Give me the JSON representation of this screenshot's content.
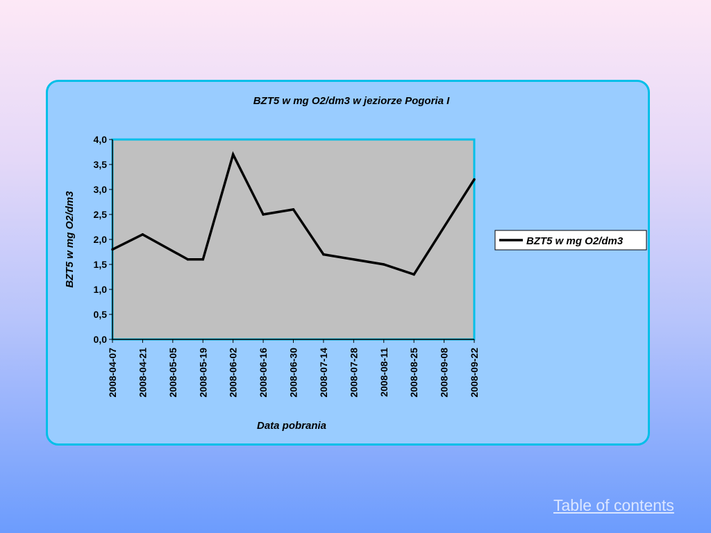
{
  "chart_data": {
    "type": "line",
    "title": "BZT5 w mg O2/dm3 w jeziorze Pogoria I",
    "xlabel": "Data pobrania",
    "ylabel": "BZT5 w mg O2/dm3",
    "ylim": [
      0,
      4
    ],
    "yticks": [
      "0,0",
      "0,5",
      "1,0",
      "1,5",
      "2,0",
      "2,5",
      "3,0",
      "3,5",
      "4,0"
    ],
    "xticks": [
      "2008-04-07",
      "2008-04-21",
      "2008-05-05",
      "2008-05-19",
      "2008-06-02",
      "2008-06-16",
      "2008-06-30",
      "2008-07-14",
      "2008-07-28",
      "2008-08-11",
      "2008-08-25",
      "2008-09-08",
      "2008-09-22"
    ],
    "xlim": [
      "2008-04-07",
      "2008-09-22"
    ],
    "legend_position": "right",
    "grid": false,
    "plot_background": "#c0c0c0",
    "line_color": "#000000",
    "series": [
      {
        "name": "BZT5 w mg O2/dm3",
        "points": [
          {
            "x": "2008-04-07",
            "y": 1.8
          },
          {
            "x": "2008-04-21",
            "y": 2.1
          },
          {
            "x": "2008-05-12",
            "y": 1.6
          },
          {
            "x": "2008-05-19",
            "y": 1.6
          },
          {
            "x": "2008-06-02",
            "y": 3.7
          },
          {
            "x": "2008-06-16",
            "y": 2.5
          },
          {
            "x": "2008-06-30",
            "y": 2.6
          },
          {
            "x": "2008-07-14",
            "y": 1.7
          },
          {
            "x": "2008-08-11",
            "y": 1.5
          },
          {
            "x": "2008-08-25",
            "y": 1.3
          },
          {
            "x": "2008-09-22",
            "y": 3.2
          }
        ]
      }
    ]
  },
  "footer": {
    "toc_link": "Table of contents"
  }
}
